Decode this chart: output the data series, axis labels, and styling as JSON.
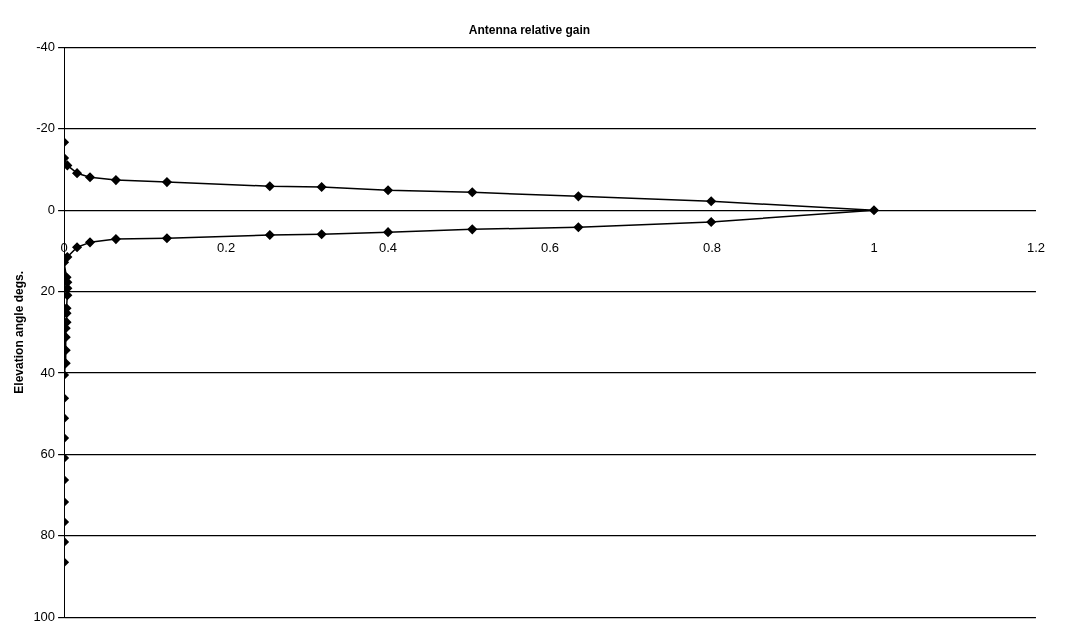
{
  "chart_data": {
    "type": "line",
    "title": "Antenna relative gain",
    "ylabel": "Elevation angle degs.",
    "x": [
      0,
      0,
      0.004,
      0.016,
      0.032,
      0.064,
      0.127,
      0.254,
      0.318,
      0.4,
      0.504,
      0.635,
      0.799,
      1,
      0.799,
      0.635,
      0.504,
      0.4,
      0.318,
      0.254,
      0.127,
      0.064,
      0.032,
      0.016,
      0.004,
      0,
      0.003,
      0.004,
      0.004,
      0.004,
      0.003,
      0.003,
      0.003,
      0.002,
      0.002,
      0.002,
      0.002,
      0,
      0,
      0,
      0,
      0,
      0,
      0,
      0,
      0,
      0
    ],
    "values": [
      -16.7,
      -12.8,
      -11,
      -9.1,
      -8.1,
      -7.4,
      -6.9,
      -5.9,
      -5.7,
      -4.9,
      -4.4,
      -3.4,
      -2.2,
      0,
      2.9,
      4.2,
      4.7,
      5.4,
      5.9,
      6.1,
      6.9,
      7.1,
      7.9,
      9.1,
      11.5,
      12.8,
      16.5,
      17.7,
      19.2,
      20.9,
      24.1,
      25.3,
      27.5,
      29,
      31.2,
      34.4,
      37.6,
      40.5,
      46.2,
      51.1,
      56,
      60.9,
      66.3,
      71.7,
      76.6,
      81.5,
      86.5
    ],
    "color": "#000000",
    "marker": "diamond",
    "grid": "y",
    "legend": false,
    "xlim": [
      0,
      1.2
    ],
    "xticks": [
      0,
      0.2,
      0.4,
      0.6,
      0.8,
      1,
      1.2
    ],
    "ylim": [
      100,
      -40
    ],
    "yticks": [
      -40,
      -20,
      0,
      20,
      40,
      60,
      80,
      100
    ]
  }
}
